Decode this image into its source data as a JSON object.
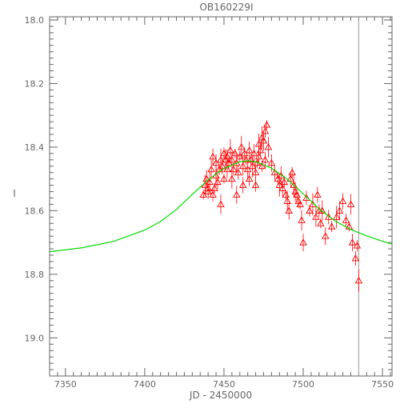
{
  "chart_data": {
    "type": "scatter",
    "title": "OB160229I",
    "xlabel": "JD - 2450000",
    "ylabel": "I",
    "xlim": [
      7340,
      7556
    ],
    "ylim": [
      19.12,
      17.99
    ],
    "y_inverted": true,
    "x_ticks": [
      7350,
      7400,
      7450,
      7500,
      7550
    ],
    "y_ticks": [
      18.0,
      18.2,
      18.4,
      18.6,
      18.8,
      19.0
    ],
    "x_tick_labels": [
      "7350",
      "7400",
      "7450",
      "7500",
      "7550"
    ],
    "y_tick_labels": [
      "18.0",
      "18.2",
      "18.4",
      "18.6",
      "18.8",
      "19.0"
    ],
    "grid": false,
    "vertical_line_x": 7535,
    "colors": {
      "points": "#ff0000",
      "model": "#00dd00",
      "vline": "#999999",
      "axes": "#666666"
    },
    "model_curve": {
      "name": "",
      "x": [
        7340,
        7360,
        7380,
        7400,
        7410,
        7420,
        7430,
        7440,
        7450,
        7460,
        7465,
        7470,
        7480,
        7490,
        7500,
        7510,
        7520,
        7530,
        7540,
        7550,
        7556
      ],
      "y": [
        18.729,
        18.717,
        18.697,
        18.661,
        18.634,
        18.596,
        18.549,
        18.503,
        18.467,
        18.446,
        18.443,
        18.446,
        18.466,
        18.501,
        18.547,
        18.594,
        18.632,
        18.659,
        18.679,
        18.696,
        18.705
      ]
    },
    "points": {
      "name": "",
      "x": [
        7437,
        7438,
        7439,
        7440,
        7440,
        7441,
        7442,
        7443,
        7443,
        7444,
        7445,
        7445,
        7446,
        7447,
        7448,
        7448,
        7449,
        7450,
        7450,
        7451,
        7452,
        7452,
        7453,
        7454,
        7455,
        7455,
        7456,
        7457,
        7458,
        7458,
        7459,
        7460,
        7461,
        7462,
        7462,
        7463,
        7464,
        7465,
        7466,
        7466,
        7467,
        7468,
        7469,
        7470,
        7470,
        7471,
        7472,
        7472,
        7473,
        7474,
        7474,
        7475,
        7476,
        7476,
        7477,
        7478,
        7480,
        7482,
        7484,
        7485,
        7486,
        7487,
        7488,
        7489,
        7490,
        7491,
        7492,
        7493,
        7494,
        7495,
        7496,
        7497,
        7498,
        7499,
        7500,
        7502,
        7504,
        7506,
        7508,
        7509,
        7510,
        7511,
        7512,
        7514,
        7516,
        7518,
        7521,
        7523,
        7525,
        7527,
        7529,
        7530,
        7531,
        7533,
        7534,
        7535
      ],
      "y": [
        18.55,
        18.52,
        18.5,
        18.54,
        18.53,
        18.51,
        18.47,
        18.43,
        18.55,
        18.53,
        18.49,
        18.45,
        18.51,
        18.47,
        18.44,
        18.58,
        18.46,
        18.42,
        18.5,
        18.44,
        18.47,
        18.43,
        18.45,
        18.41,
        18.5,
        18.44,
        18.47,
        18.42,
        18.45,
        18.55,
        18.48,
        18.43,
        18.4,
        18.46,
        18.52,
        18.42,
        18.44,
        18.47,
        18.41,
        18.5,
        18.44,
        18.46,
        18.42,
        18.48,
        18.52,
        18.45,
        18.39,
        18.43,
        18.41,
        18.46,
        18.37,
        18.38,
        18.44,
        18.35,
        18.33,
        18.4,
        18.45,
        18.48,
        18.5,
        18.52,
        18.49,
        18.53,
        18.51,
        18.55,
        18.57,
        18.6,
        18.5,
        18.48,
        18.52,
        18.54,
        18.55,
        18.57,
        18.58,
        18.63,
        18.7,
        18.56,
        18.6,
        18.58,
        18.62,
        18.55,
        18.6,
        18.64,
        18.6,
        18.68,
        18.62,
        18.65,
        18.62,
        18.6,
        18.57,
        18.63,
        18.65,
        18.58,
        18.7,
        18.75,
        18.71,
        18.82
      ]
    }
  }
}
